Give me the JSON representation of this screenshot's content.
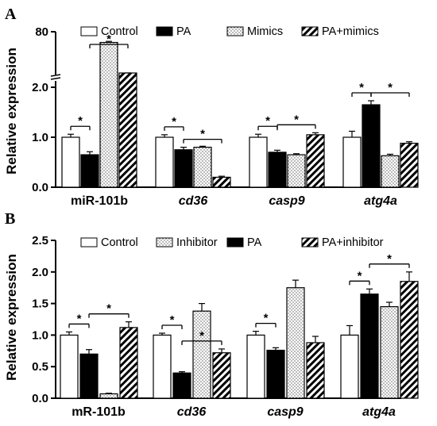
{
  "panels": [
    {
      "letter": "A",
      "legend": [
        "Control",
        "PA",
        "Mimics",
        "PA+mimics"
      ],
      "ylabel": "Relative expression",
      "yticks": [
        "0.0",
        "1.0",
        "2.0",
        "80"
      ]
    },
    {
      "letter": "B",
      "legend": [
        "Control",
        "Inhibitor",
        "PA",
        "PA+inhibitor"
      ],
      "ylabel": "Relative expression",
      "yticks": [
        "0.0",
        "0.5",
        "1.0",
        "1.5",
        "2.0",
        "2.5"
      ]
    }
  ],
  "chart_data": [
    {
      "type": "bar",
      "panel": "A",
      "categories": [
        "miR-101b",
        "cd36",
        "casp9",
        "atg4a"
      ],
      "italic_categories": [
        false,
        true,
        true,
        true
      ],
      "series": [
        {
          "name": "Control",
          "values": [
            1.0,
            1.0,
            1.0,
            1.0
          ],
          "errors": [
            0.06,
            0.05,
            0.06,
            0.12
          ],
          "fill": "white"
        },
        {
          "name": "PA",
          "values": [
            0.65,
            0.75,
            0.7,
            1.65
          ],
          "errors": [
            0.06,
            0.05,
            0.04,
            0.08
          ],
          "fill": "black"
        },
        {
          "name": "Mimics",
          "values": [
            60,
            0.8,
            0.65,
            0.63
          ],
          "errors": [
            2,
            0.02,
            0.02,
            0.03
          ],
          "fill": "dots"
        },
        {
          "name": "PA+mimics",
          "values": [
            3.0,
            0.2,
            1.05,
            0.88
          ],
          "errors": [
            0.1,
            0.02,
            0.04,
            0.03
          ],
          "fill": "hatch"
        }
      ],
      "ylabel": "Relative expression",
      "y_axis": {
        "lower_segment": [
          0,
          2.0
        ],
        "upper_segment_label": "80",
        "broken": true
      },
      "significance": [
        {
          "category": "miR-101b",
          "from": "Control",
          "to": "PA",
          "label": "*"
        },
        {
          "category": "miR-101b",
          "from": "PA",
          "to": "PA+mimics",
          "label": "*"
        },
        {
          "category": "cd36",
          "from": "Control",
          "to": "PA",
          "label": "*"
        },
        {
          "category": "cd36",
          "from": "PA",
          "to": "PA+mimics",
          "label": "*"
        },
        {
          "category": "casp9",
          "from": "Control",
          "to": "PA",
          "label": "*"
        },
        {
          "category": "casp9",
          "from": "PA",
          "to": "PA+mimics",
          "label": "*"
        },
        {
          "category": "atg4a",
          "from": "Control",
          "to": "PA",
          "label": "*"
        },
        {
          "category": "atg4a",
          "from": "PA",
          "to": "PA+mimics",
          "label": "*"
        }
      ],
      "legend_position": "top"
    },
    {
      "type": "bar",
      "panel": "B",
      "categories": [
        "mR-101b",
        "cd36",
        "casp9",
        "atg4a"
      ],
      "italic_categories": [
        false,
        true,
        true,
        true
      ],
      "series": [
        {
          "name": "Control",
          "values": [
            1.0,
            1.0,
            1.0,
            1.0
          ],
          "errors": [
            0.05,
            0.03,
            0.06,
            0.15
          ],
          "fill": "white"
        },
        {
          "name": "PA",
          "values": [
            0.7,
            0.4,
            0.76,
            1.65
          ],
          "errors": [
            0.07,
            0.02,
            0.04,
            0.08
          ],
          "fill": "black"
        },
        {
          "name": "Inhibitor",
          "values": [
            0.07,
            1.38,
            1.75,
            1.45
          ],
          "errors": [
            0.01,
            0.12,
            0.12,
            0.07
          ],
          "fill": "dots"
        },
        {
          "name": "PA+inhibitor",
          "values": [
            1.12,
            0.72,
            0.88,
            1.85
          ],
          "errors": [
            0.09,
            0.06,
            0.1,
            0.15
          ],
          "fill": "hatch"
        }
      ],
      "ylabel": "Relative expression",
      "ylim": [
        0,
        2.5
      ],
      "significance": [
        {
          "category": "mR-101b",
          "from": "Control",
          "to": "PA",
          "label": "*"
        },
        {
          "category": "mR-101b",
          "from": "PA",
          "to": "PA+inhibitor",
          "label": "*"
        },
        {
          "category": "cd36",
          "from": "Control",
          "to": "PA",
          "label": "*"
        },
        {
          "category": "cd36",
          "from": "PA",
          "to": "PA+inhibitor",
          "label": "*"
        },
        {
          "category": "casp9",
          "from": "Control",
          "to": "PA",
          "label": "*"
        },
        {
          "category": "atg4a",
          "from": "Control",
          "to": "PA",
          "label": "*"
        },
        {
          "category": "atg4a",
          "from": "PA",
          "to": "PA+inhibitor",
          "label": "*"
        }
      ],
      "legend_position": "top"
    }
  ]
}
